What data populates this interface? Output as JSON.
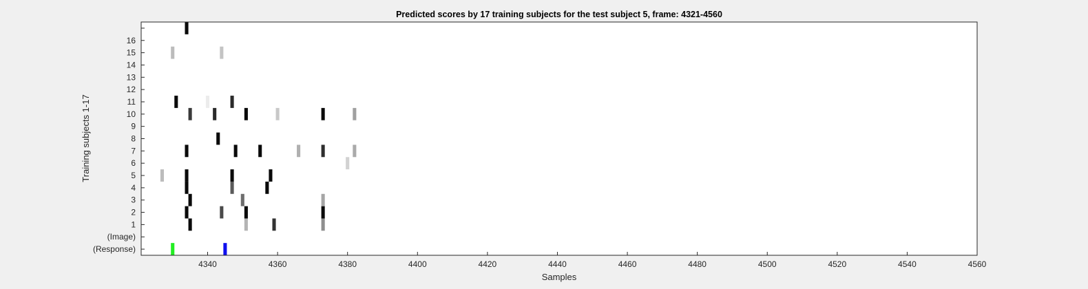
{
  "chart_data": {
    "type": "heatmap",
    "title": "Predicted scores by 17 training subjects for the test subject 5, frame: 4321-4560",
    "xlabel": "Samples",
    "ylabel": "Training subjects 1-17",
    "xlim": [
      4321,
      4560
    ],
    "x_ticks": [
      4340,
      4360,
      4380,
      4400,
      4420,
      4440,
      4460,
      4480,
      4500,
      4520,
      4540,
      4560
    ],
    "rows": [
      {
        "label": "(Response)",
        "row": 0
      },
      {
        "label": "(Image)",
        "row": 1
      },
      {
        "label": "1",
        "row": 2
      },
      {
        "label": "2",
        "row": 3
      },
      {
        "label": "3",
        "row": 4
      },
      {
        "label": "4",
        "row": 5
      },
      {
        "label": "5",
        "row": 6
      },
      {
        "label": "6",
        "row": 7
      },
      {
        "label": "7",
        "row": 8
      },
      {
        "label": "8",
        "row": 9
      },
      {
        "label": "9",
        "row": 10
      },
      {
        "label": "10",
        "row": 11
      },
      {
        "label": "11",
        "row": 12
      },
      {
        "label": "12",
        "row": 13
      },
      {
        "label": "13",
        "row": 14
      },
      {
        "label": "14",
        "row": 15
      },
      {
        "label": "15",
        "row": 16
      },
      {
        "label": "16",
        "row": 17
      },
      {
        "label": "",
        "row": 18
      }
    ],
    "ylim": [
      -0.5,
      18.5
    ],
    "grid": false,
    "cells": [
      {
        "x": 4330,
        "row": 0,
        "color": "#22ee22"
      },
      {
        "x": 4345,
        "row": 0,
        "color": "#1010ee"
      },
      {
        "x": 4335,
        "row": 2,
        "color": "#0a0a0a"
      },
      {
        "x": 4351,
        "row": 2,
        "color": "#b4b4b4"
      },
      {
        "x": 4359,
        "row": 2,
        "color": "#333333"
      },
      {
        "x": 4373,
        "row": 2,
        "color": "#8e8e8e"
      },
      {
        "x": 4334,
        "row": 3,
        "color": "#0a0a0a"
      },
      {
        "x": 4344,
        "row": 3,
        "color": "#4a4a4a"
      },
      {
        "x": 4351,
        "row": 3,
        "color": "#0a0a0a"
      },
      {
        "x": 4373,
        "row": 3,
        "color": "#0a0a0a"
      },
      {
        "x": 4335,
        "row": 4,
        "color": "#0a0a0a"
      },
      {
        "x": 4350,
        "row": 4,
        "color": "#6e6e6e"
      },
      {
        "x": 4373,
        "row": 4,
        "color": "#a6a6a6"
      },
      {
        "x": 4334,
        "row": 5,
        "color": "#0a0a0a"
      },
      {
        "x": 4347,
        "row": 5,
        "color": "#5a5a5a"
      },
      {
        "x": 4357,
        "row": 5,
        "color": "#0a0a0a"
      },
      {
        "x": 4327,
        "row": 6,
        "color": "#bcbcbc"
      },
      {
        "x": 4334,
        "row": 6,
        "color": "#0a0a0a"
      },
      {
        "x": 4347,
        "row": 6,
        "color": "#0a0a0a"
      },
      {
        "x": 4358,
        "row": 6,
        "color": "#0a0a0a"
      },
      {
        "x": 4380,
        "row": 7,
        "color": "#d2d2d2"
      },
      {
        "x": 4334,
        "row": 8,
        "color": "#0a0a0a"
      },
      {
        "x": 4348,
        "row": 8,
        "color": "#0a0a0a"
      },
      {
        "x": 4355,
        "row": 8,
        "color": "#0a0a0a"
      },
      {
        "x": 4366,
        "row": 8,
        "color": "#b0b0b0"
      },
      {
        "x": 4373,
        "row": 8,
        "color": "#2e2e2e"
      },
      {
        "x": 4382,
        "row": 8,
        "color": "#aaaaaa"
      },
      {
        "x": 4343,
        "row": 9,
        "color": "#0a0a0a"
      },
      {
        "x": 4335,
        "row": 11,
        "color": "#3a3a3a"
      },
      {
        "x": 4342,
        "row": 11,
        "color": "#2a2a2a"
      },
      {
        "x": 4351,
        "row": 11,
        "color": "#0a0a0a"
      },
      {
        "x": 4360,
        "row": 11,
        "color": "#c8c8c8"
      },
      {
        "x": 4373,
        "row": 11,
        "color": "#0a0a0a"
      },
      {
        "x": 4382,
        "row": 11,
        "color": "#a0a0a0"
      },
      {
        "x": 4331,
        "row": 12,
        "color": "#0a0a0a"
      },
      {
        "x": 4340,
        "row": 12,
        "color": "#ececec"
      },
      {
        "x": 4347,
        "row": 12,
        "color": "#2a2a2a"
      },
      {
        "x": 4330,
        "row": 16,
        "color": "#bcbcbc"
      },
      {
        "x": 4344,
        "row": 16,
        "color": "#c4c4c4"
      },
      {
        "x": 4334,
        "row": 18,
        "color": "#0a0a0a"
      }
    ]
  }
}
